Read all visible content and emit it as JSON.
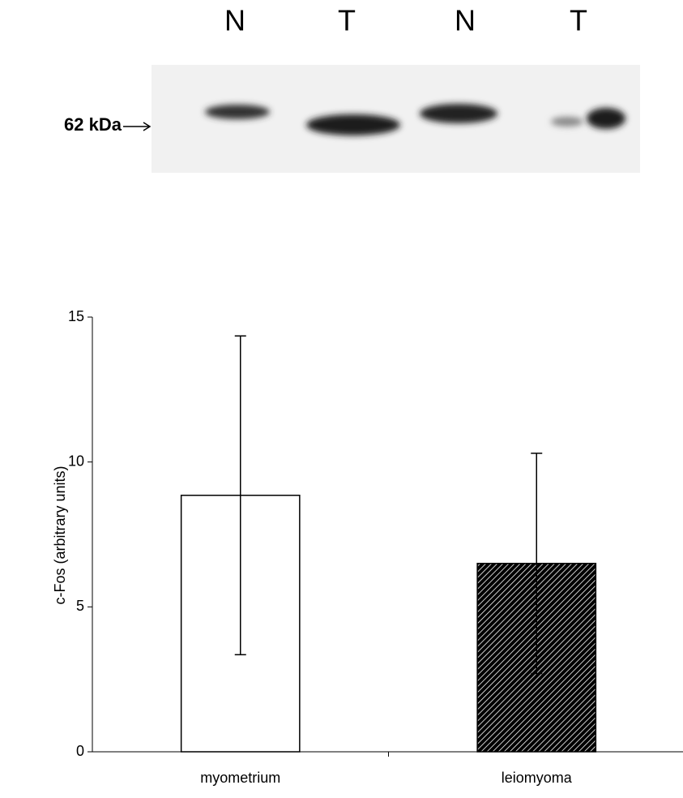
{
  "blot": {
    "lanes": [
      "N",
      "T",
      "N",
      "T"
    ],
    "marker": "62 kDa"
  },
  "chart_data": {
    "type": "bar",
    "y_label": "c-Fos (arbitrary units)",
    "categories": [
      "myometrium",
      "leiomyoma"
    ],
    "values": [
      8.85,
      6.5
    ],
    "errors": [
      5.5,
      3.8
    ],
    "colors": [
      "#ffffff",
      "#a6a6a6"
    ],
    "hatched": [
      false,
      true
    ],
    "ylim": [
      0,
      15
    ],
    "yticks": [
      0,
      5,
      10,
      15
    ],
    "grid": false
  }
}
